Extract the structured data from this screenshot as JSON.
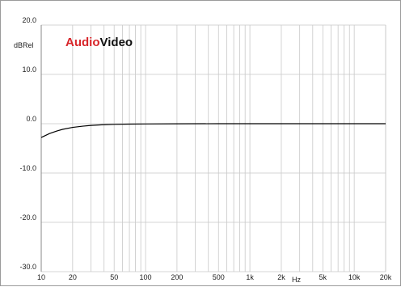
{
  "chart_data": {
    "type": "line",
    "title": "",
    "ylabel": "dBRel",
    "xlabel": "Hz",
    "x_scale": "log",
    "xlim": [
      10,
      20000
    ],
    "ylim": [
      -30,
      20
    ],
    "grid": true,
    "y_ticks": [
      {
        "value": 20,
        "label": "20.0"
      },
      {
        "value": 10,
        "label": "10.0"
      },
      {
        "value": 0,
        "label": "0.0"
      },
      {
        "value": -10,
        "label": "-10.0"
      },
      {
        "value": -20,
        "label": "-20.0"
      },
      {
        "value": -30,
        "label": "-30.0"
      }
    ],
    "x_ticks": [
      {
        "value": 10,
        "label": "10"
      },
      {
        "value": 20,
        "label": "20"
      },
      {
        "value": 50,
        "label": "50"
      },
      {
        "value": 100,
        "label": "100"
      },
      {
        "value": 200,
        "label": "200"
      },
      {
        "value": 500,
        "label": "500"
      },
      {
        "value": 1000,
        "label": "1k"
      },
      {
        "value": 2000,
        "label": "2k"
      },
      {
        "value": 5000,
        "label": "5k"
      },
      {
        "value": 10000,
        "label": "10k"
      },
      {
        "value": 20000,
        "label": "20k"
      }
    ],
    "series": [
      {
        "color": "#000000",
        "x": [
          10,
          12,
          14,
          16,
          20,
          25,
          30,
          40,
          50,
          70,
          100,
          200,
          500,
          1000,
          2000,
          5000,
          10000,
          20000
        ],
        "y": [
          -2.8,
          -2.0,
          -1.5,
          -1.15,
          -0.75,
          -0.5,
          -0.35,
          -0.2,
          -0.13,
          -0.08,
          -0.05,
          -0.02,
          0.0,
          0.0,
          0.0,
          0.0,
          0.0,
          0.0
        ]
      }
    ]
  },
  "logo": {
    "part1": "Audio",
    "part2": "Video"
  },
  "colors": {
    "grid": "#c8c8c8",
    "axis": "#888888",
    "curve": "#000000",
    "logo_red": "#d8262b"
  }
}
